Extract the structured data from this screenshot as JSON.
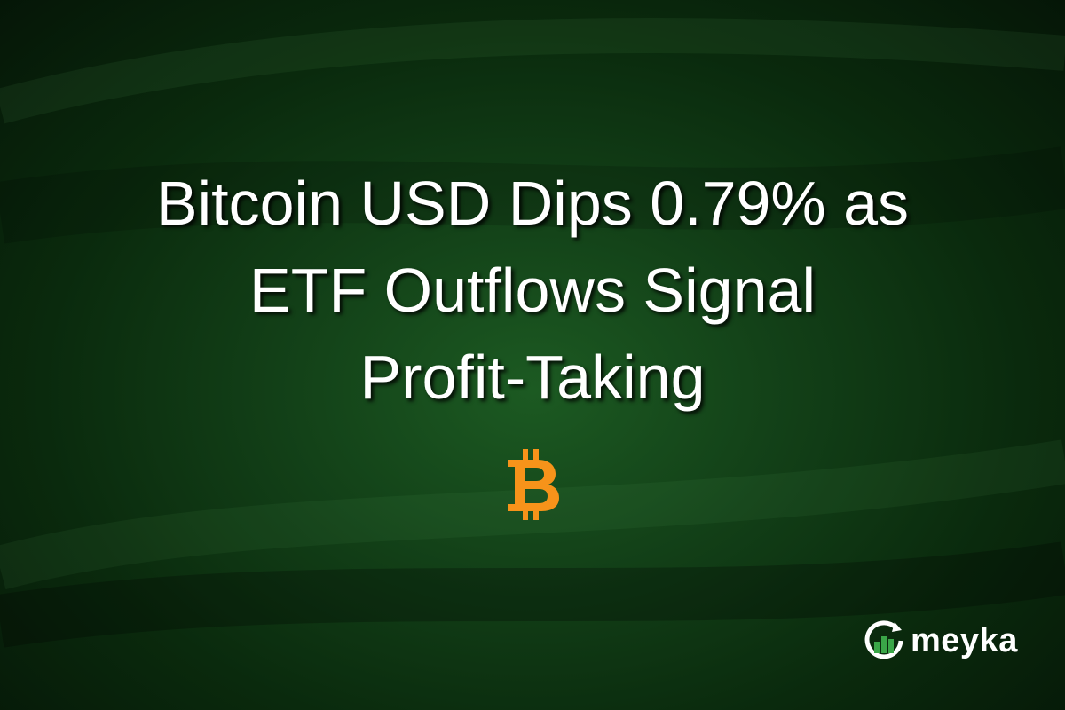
{
  "headline": {
    "lines": [
      "Bitcoin USD Dips 0.79% as",
      "ETF Outflows Signal",
      "Profit-Taking"
    ]
  },
  "icon": {
    "name": "bitcoin-icon",
    "color": "#f7931a"
  },
  "brand": {
    "name": "meyka",
    "accent": "#3aa648"
  },
  "colors": {
    "background": "#123f17",
    "text": "#ffffff"
  }
}
